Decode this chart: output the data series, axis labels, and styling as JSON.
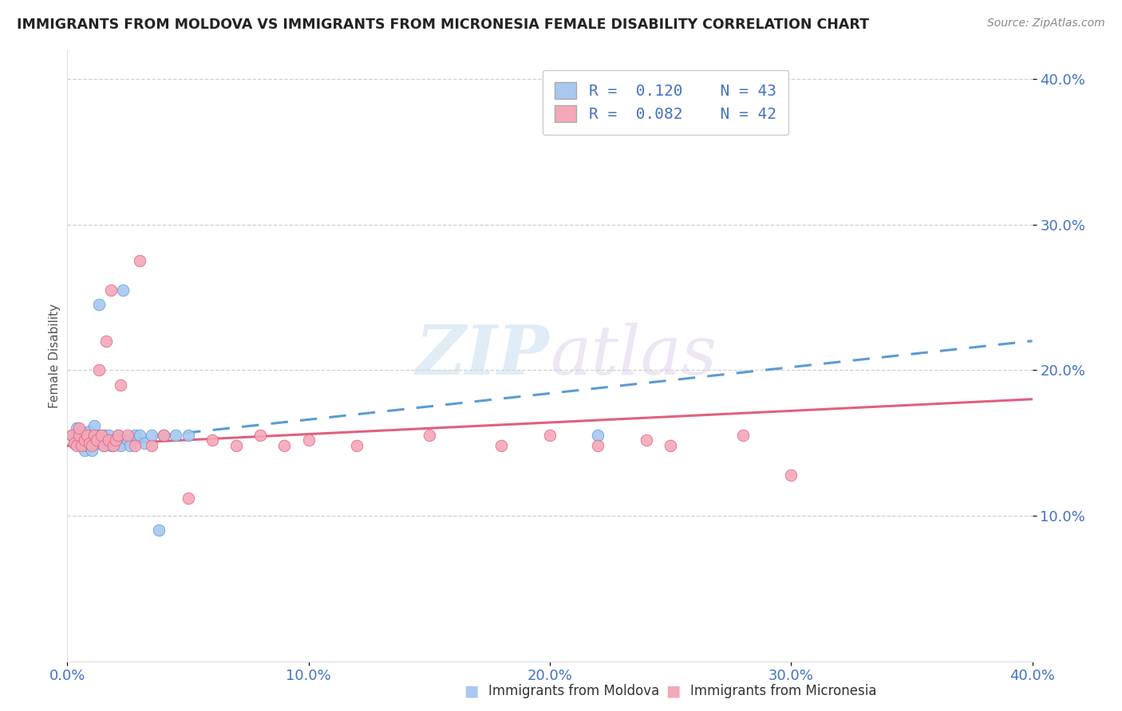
{
  "title": "IMMIGRANTS FROM MOLDOVA VS IMMIGRANTS FROM MICRONESIA FEMALE DISABILITY CORRELATION CHART",
  "source": "Source: ZipAtlas.com",
  "ylabel": "Female Disability",
  "xlim": [
    0.0,
    0.4
  ],
  "ylim": [
    0.0,
    0.42
  ],
  "xticks": [
    0.0,
    0.1,
    0.2,
    0.3,
    0.4
  ],
  "yticks": [
    0.1,
    0.2,
    0.3,
    0.4
  ],
  "xticklabels": [
    "0.0%",
    "10.0%",
    "20.0%",
    "30.0%",
    "40.0%"
  ],
  "yticklabels": [
    "10.0%",
    "20.0%",
    "30.0%",
    "40.0%"
  ],
  "moldova_color": "#a8c8f0",
  "micronesia_color": "#f4a8b8",
  "moldova_line_color": "#5b9bd5",
  "micronesia_line_color": "#e06080",
  "R_moldova": 0.12,
  "N_moldova": 43,
  "R_micronesia": 0.082,
  "N_micronesia": 42,
  "legend_label_moldova": "Immigrants from Moldova",
  "legend_label_micronesia": "Immigrants from Micronesia",
  "moldova_x": [
    0.002,
    0.003,
    0.004,
    0.004,
    0.005,
    0.005,
    0.006,
    0.006,
    0.007,
    0.007,
    0.008,
    0.008,
    0.009,
    0.009,
    0.01,
    0.01,
    0.011,
    0.011,
    0.012,
    0.013,
    0.013,
    0.014,
    0.015,
    0.015,
    0.016,
    0.017,
    0.018,
    0.019,
    0.02,
    0.021,
    0.022,
    0.023,
    0.025,
    0.026,
    0.028,
    0.03,
    0.032,
    0.035,
    0.038,
    0.04,
    0.045,
    0.05,
    0.22
  ],
  "moldova_y": [
    0.155,
    0.15,
    0.155,
    0.16,
    0.15,
    0.155,
    0.15,
    0.158,
    0.145,
    0.152,
    0.148,
    0.155,
    0.152,
    0.158,
    0.145,
    0.15,
    0.155,
    0.162,
    0.15,
    0.245,
    0.155,
    0.15,
    0.148,
    0.155,
    0.152,
    0.155,
    0.148,
    0.152,
    0.15,
    0.155,
    0.148,
    0.255,
    0.152,
    0.148,
    0.155,
    0.155,
    0.15,
    0.155,
    0.09,
    0.155,
    0.155,
    0.155,
    0.155
  ],
  "micronesia_x": [
    0.002,
    0.003,
    0.004,
    0.005,
    0.005,
    0.006,
    0.007,
    0.008,
    0.009,
    0.01,
    0.011,
    0.012,
    0.013,
    0.014,
    0.015,
    0.016,
    0.017,
    0.018,
    0.019,
    0.02,
    0.021,
    0.022,
    0.025,
    0.028,
    0.03,
    0.035,
    0.04,
    0.05,
    0.06,
    0.07,
    0.08,
    0.09,
    0.1,
    0.12,
    0.15,
    0.18,
    0.2,
    0.22,
    0.24,
    0.25,
    0.28,
    0.3
  ],
  "micronesia_y": [
    0.155,
    0.15,
    0.148,
    0.155,
    0.16,
    0.148,
    0.152,
    0.155,
    0.15,
    0.148,
    0.155,
    0.152,
    0.2,
    0.155,
    0.148,
    0.22,
    0.152,
    0.255,
    0.148,
    0.152,
    0.155,
    0.19,
    0.155,
    0.148,
    0.275,
    0.148,
    0.155,
    0.112,
    0.152,
    0.148,
    0.155,
    0.148,
    0.152,
    0.148,
    0.155,
    0.148,
    0.155,
    0.148,
    0.152,
    0.148,
    0.155,
    0.128
  ],
  "watermark_zip": "ZIP",
  "watermark_atlas": "atlas",
  "background_color": "#ffffff",
  "grid_color": "#d0d0d0",
  "tick_color": "#4472c4",
  "title_color": "#222222",
  "source_color": "#888888",
  "ylabel_color": "#555555"
}
